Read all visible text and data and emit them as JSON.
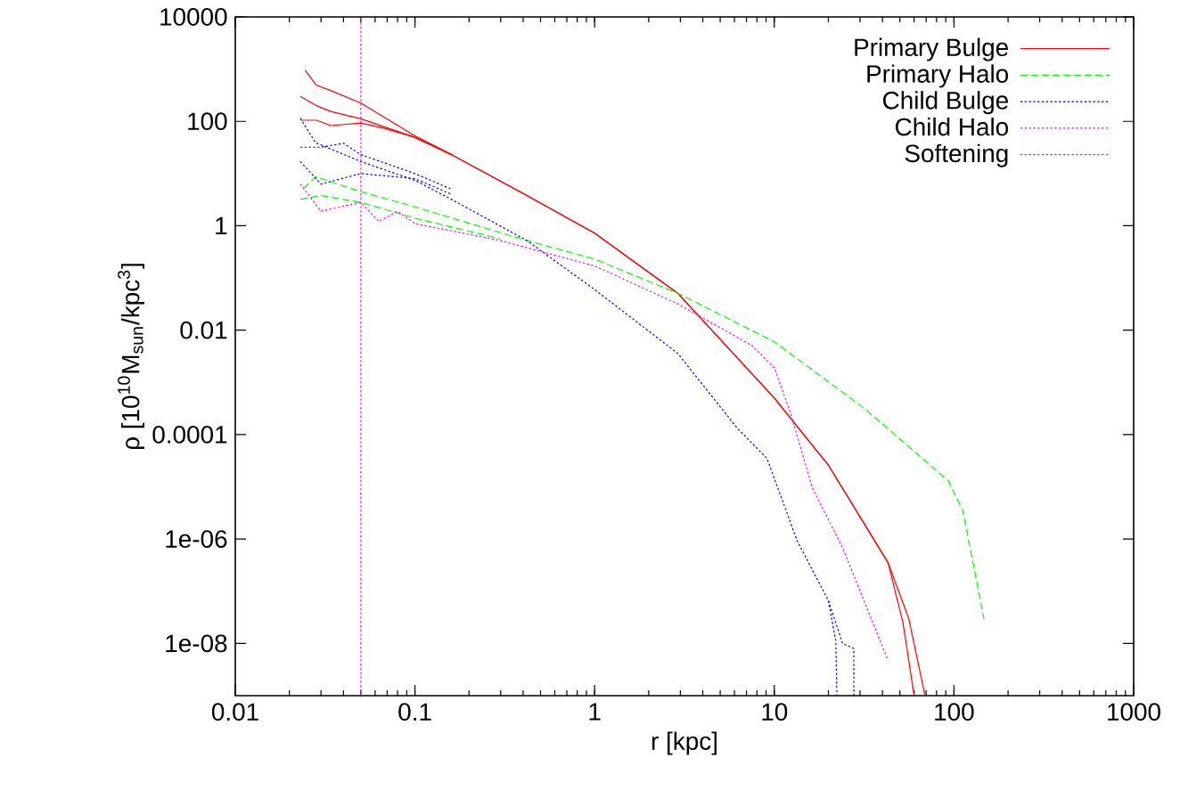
{
  "chart_data": {
    "type": "line",
    "xlabel": "r [kpc]",
    "ylabel": "ρ [10$^{10}$M$_{sun}$/kpc$^{3}$]",
    "log": "xy",
    "xlim": [
      0.01,
      1000
    ],
    "ylim": [
      1e-09,
      10000
    ],
    "xticks": [
      0.01,
      0.1,
      1,
      10,
      100,
      1000
    ],
    "yticks": [
      {
        "value": 1e-08,
        "label": "1e-08"
      },
      {
        "value": 1e-06,
        "label": "1e-06"
      },
      0.0001,
      0.01,
      1,
      100,
      10000
    ],
    "grid": false,
    "legend": "top right",
    "series": [
      {
        "name": "Primary Bulge",
        "color": "#ff0000",
        "line_style": "solid",
        "x": [
          0.0245,
          0.0283,
          0.034,
          0.05,
          0.099,
          0.16,
          0.42,
          1,
          2.9,
          10,
          20,
          43,
          52,
          60
        ],
        "values": [
          955,
          490,
          389,
          224,
          54,
          23,
          3.8,
          0.72,
          0.051,
          0.0005,
          2.6e-05,
          3.5e-07,
          2.5e-08,
          1e-09
        ]
      },
      {
        "color": "#ff0000",
        "line_style": "solid",
        "x": [
          0.023,
          0.0283,
          0.034,
          0.05,
          0.099,
          0.16,
          0.42,
          1,
          2.9,
          10,
          20,
          43,
          56,
          69
        ],
        "values": [
          300,
          200,
          155,
          112,
          50,
          23,
          3.8,
          0.72,
          0.051,
          0.0005,
          2.6e-05,
          3.5e-07,
          3e-08,
          1e-09
        ]
      },
      {
        "color": "#ff0000",
        "line_style": "solid",
        "x": [
          0.023,
          0.0283,
          0.034,
          0.05,
          0.067,
          0.099,
          0.16
        ],
        "values": [
          105,
          105,
          83,
          93,
          74,
          50,
          23
        ]
      },
      {
        "name": "Primary Halo",
        "color": "#00ff00",
        "line_style": "dashed",
        "x": [
          0.024,
          0.028,
          0.05,
          0.1,
          0.42,
          1,
          2.9,
          10,
          32,
          93,
          112,
          135,
          147
        ],
        "values": [
          5.2,
          8.7,
          4.5,
          2.3,
          0.52,
          0.23,
          0.051,
          0.006,
          0.00031,
          1.3e-05,
          3.5e-06,
          1.3e-07,
          2.9e-08
        ]
      },
      {
        "color": "#00ff00",
        "line_style": "dashed",
        "x": [
          0.023,
          0.03,
          0.05,
          0.1,
          0.3
        ],
        "values": [
          3.2,
          3.8,
          2.8,
          1.4,
          0.56
        ]
      },
      {
        "name": "Child Bulge",
        "color": "#0000ff",
        "line_style": "dotted",
        "x": [
          0.023,
          0.028,
          0.05,
          0.1,
          0.16,
          0.42,
          1,
          2.9,
          6.2,
          9.1,
          13.4,
          20,
          22,
          22.3
        ],
        "values": [
          115,
          39,
          17,
          7.4,
          3.2,
          0.52,
          0.06,
          0.0036,
          0.000135,
          3.5e-05,
          9.3e-07,
          6.6e-08,
          1.1e-08,
          1e-09
        ]
      },
      {
        "color": "#0000ff",
        "line_style": "dotted",
        "x": [
          0.023,
          0.03,
          0.04,
          0.05,
          0.1,
          0.16
        ],
        "values": [
          32,
          32,
          38,
          23,
          10,
          5
        ]
      },
      {
        "color": "#0000ff",
        "line_style": "dotted",
        "x": [
          0.023,
          0.03,
          0.05,
          0.1,
          0.16
        ],
        "values": [
          17,
          6.3,
          10,
          8,
          4
        ]
      },
      {
        "color": "#0000ff",
        "line_style": "dotted",
        "x": [
          20,
          24,
          27.7,
          27.7
        ],
        "values": [
          6.6e-08,
          1e-08,
          8e-09,
          1e-09
        ]
      },
      {
        "name": "Child Halo",
        "color": "#ff00ff",
        "line_style": "dotted",
        "x": [
          0.023,
          0.03,
          0.05,
          0.063,
          0.08,
          0.1,
          0.3,
          1,
          2.9,
          7.5,
          10,
          12.3,
          16.3,
          24,
          43
        ],
        "values": [
          6.3,
          1.9,
          2.8,
          1.2,
          1.9,
          1.1,
          0.52,
          0.17,
          0.032,
          0.0051,
          0.0019,
          0.00026,
          9.5e-06,
          6.8e-07,
          4.7e-09
        ]
      },
      {
        "name": "Softening",
        "color": "#ff00ff",
        "line_style": "dotted",
        "x": [
          0.05,
          0.05
        ],
        "values": [
          1e-09,
          10000
        ]
      }
    ]
  }
}
